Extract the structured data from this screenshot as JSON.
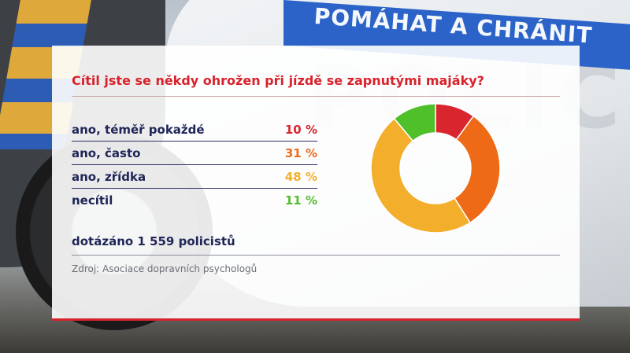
{
  "background": {
    "stripe_text": "POMÁHAT A CHRÁNIT",
    "car_text": "POLICIE"
  },
  "graphic": {
    "question": "Cítil jste se někdy ohrožen při jízdě se zapnutými majáky?",
    "note": "dotázáno 1 559 policistů",
    "source": "Zdroj: Asociace dopravních psychologů",
    "colors": {
      "accent": "#d8222b",
      "text": "#1f2557"
    }
  },
  "chart_data": {
    "type": "pie",
    "variant": "donut",
    "title": "Cítil jste se někdy ohrožen při jízdě se zapnutými majáky?",
    "categories": [
      "ano, téměř pokaždé",
      "ano, často",
      "ano, zřídka",
      "necítil"
    ],
    "values": [
      10,
      31,
      48,
      11
    ],
    "value_labels": [
      "10 %",
      "31 %",
      "48 %",
      "11 %"
    ],
    "colors": [
      "#d9262e",
      "#ee6a17",
      "#f3ae2b",
      "#4fbf2a"
    ],
    "unit": "%"
  }
}
